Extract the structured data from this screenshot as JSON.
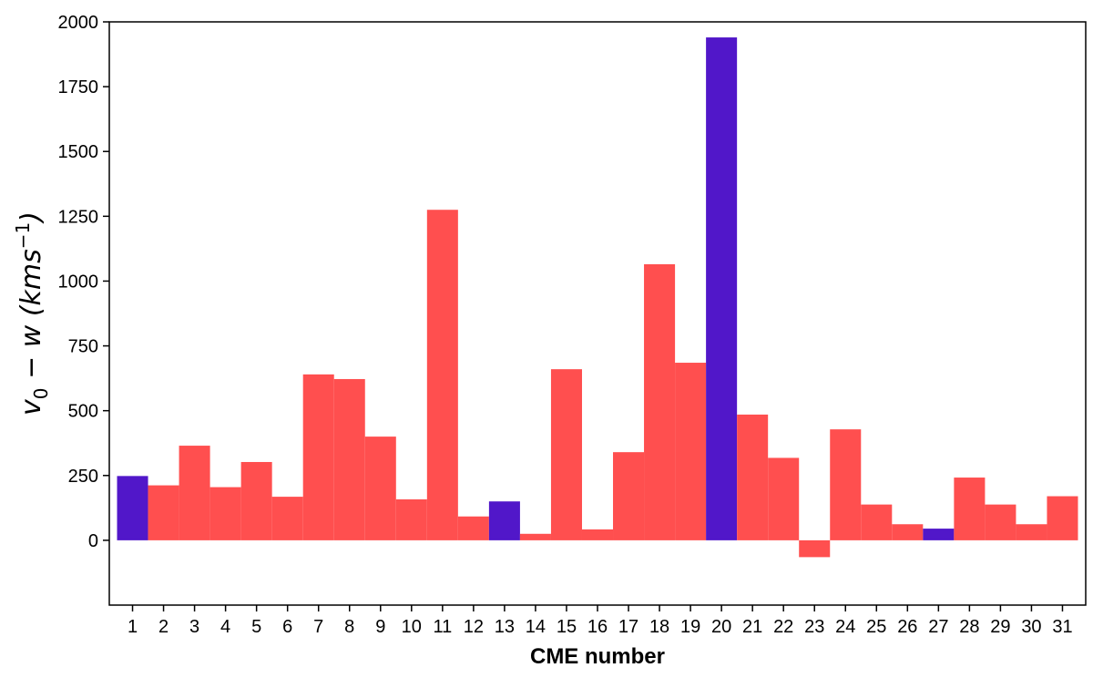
{
  "chart_data": {
    "type": "bar",
    "title": "",
    "xlabel": "CME number",
    "ylabel_main": "v",
    "ylabel_sub": "0",
    "ylabel_rest": " − w (kms",
    "ylabel_sup": "−1",
    "ylabel_close": ")",
    "ylim": [
      -250,
      2000
    ],
    "yticks": [
      0,
      250,
      500,
      750,
      1000,
      1250,
      1500,
      1750,
      2000
    ],
    "categories": [
      "1",
      "2",
      "3",
      "4",
      "5",
      "6",
      "7",
      "8",
      "9",
      "10",
      "11",
      "12",
      "13",
      "14",
      "15",
      "16",
      "17",
      "18",
      "19",
      "20",
      "21",
      "22",
      "23",
      "24",
      "25",
      "26",
      "27",
      "28",
      "29",
      "30",
      "31"
    ],
    "values": [
      248,
      212,
      365,
      205,
      302,
      168,
      640,
      622,
      400,
      158,
      1275,
      92,
      150,
      25,
      660,
      42,
      340,
      1065,
      685,
      1940,
      485,
      318,
      -65,
      428,
      138,
      62,
      45,
      242,
      138,
      62,
      170
    ],
    "highlighted": [
      "1",
      "13",
      "20",
      "27"
    ],
    "colors": {
      "default": "#ff4f4f",
      "highlight": "#5117c9"
    },
    "grid": false,
    "legend": "none"
  }
}
